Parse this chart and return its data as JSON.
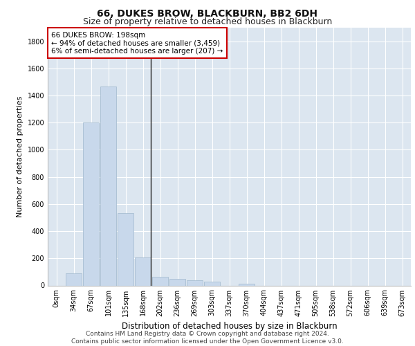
{
  "title": "66, DUKES BROW, BLACKBURN, BB2 6DH",
  "subtitle": "Size of property relative to detached houses in Blackburn",
  "xlabel": "Distribution of detached houses by size in Blackburn",
  "ylabel": "Number of detached properties",
  "bar_color": "#c8d8eb",
  "bar_edge_color": "#a0b8cc",
  "background_color": "#dce6f0",
  "categories": [
    "0sqm",
    "34sqm",
    "67sqm",
    "101sqm",
    "135sqm",
    "168sqm",
    "202sqm",
    "236sqm",
    "269sqm",
    "303sqm",
    "337sqm",
    "370sqm",
    "404sqm",
    "437sqm",
    "471sqm",
    "505sqm",
    "538sqm",
    "572sqm",
    "606sqm",
    "639sqm",
    "673sqm"
  ],
  "values": [
    0,
    90,
    1200,
    1465,
    535,
    205,
    65,
    47,
    38,
    30,
    0,
    15,
    0,
    0,
    0,
    0,
    0,
    0,
    0,
    0,
    0
  ],
  "ylim": [
    0,
    1900
  ],
  "yticks": [
    0,
    200,
    400,
    600,
    800,
    1000,
    1200,
    1400,
    1600,
    1800
  ],
  "vline_x": 5.45,
  "vline_color": "#222222",
  "annotation_line1": "66 DUKES BROW: 198sqm",
  "annotation_line2": "← 94% of detached houses are smaller (3,459)",
  "annotation_line3": "6% of semi-detached houses are larger (207) →",
  "annotation_box_color": "white",
  "annotation_box_edge": "#cc0000",
  "footer_line1": "Contains HM Land Registry data © Crown copyright and database right 2024.",
  "footer_line2": "Contains public sector information licensed under the Open Government Licence v3.0.",
  "title_fontsize": 10,
  "subtitle_fontsize": 9,
  "xlabel_fontsize": 8.5,
  "ylabel_fontsize": 8,
  "tick_fontsize": 7,
  "annotation_fontsize": 7.5,
  "footer_fontsize": 6.5
}
